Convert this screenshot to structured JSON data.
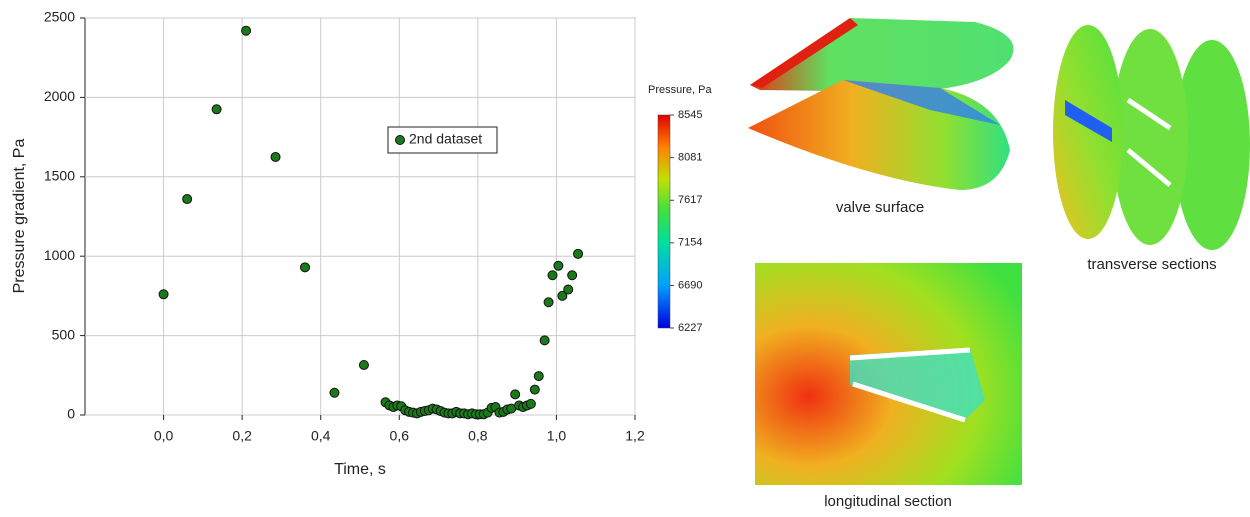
{
  "chart_data": {
    "type": "scatter",
    "xlabel": "Time, s",
    "ylabel": "Pressure gradient, Pa",
    "x": [
      0.0,
      0.06,
      0.135,
      0.21,
      0.285,
      0.36,
      0.435,
      0.51,
      0.565,
      0.575,
      0.585,
      0.595,
      0.605,
      0.615,
      0.625,
      0.635,
      0.645,
      0.655,
      0.665,
      0.675,
      0.685,
      0.695,
      0.705,
      0.715,
      0.725,
      0.735,
      0.745,
      0.755,
      0.765,
      0.775,
      0.785,
      0.795,
      0.805,
      0.815,
      0.825,
      0.835,
      0.845,
      0.855,
      0.865,
      0.875,
      0.885,
      0.895,
      0.905,
      0.915,
      0.925,
      0.935,
      0.945,
      0.955,
      0.97,
      0.98,
      0.99,
      1.005,
      1.015,
      1.03,
      1.04,
      1.055
    ],
    "series": [
      {
        "name": "2nd dataset",
        "color": "#1a7a1a",
        "values": [
          760,
          1360,
          1925,
          2420,
          1625,
          930,
          140,
          315,
          80,
          60,
          50,
          60,
          55,
          30,
          20,
          15,
          10,
          20,
          25,
          30,
          40,
          35,
          25,
          15,
          10,
          10,
          20,
          10,
          10,
          5,
          10,
          5,
          5,
          5,
          15,
          45,
          50,
          15,
          20,
          35,
          40,
          130,
          60,
          50,
          60,
          70,
          160,
          245,
          470,
          710,
          880,
          940,
          750,
          790,
          880,
          1015
        ]
      }
    ],
    "xlim": [
      -0.2,
      1.2
    ],
    "xticks": [
      {
        "value": 0,
        "label": "0,0"
      },
      {
        "value": 0.2,
        "label": "0,2"
      },
      {
        "value": 0.4,
        "label": "0,4"
      },
      {
        "value": 0.6,
        "label": "0,6"
      },
      {
        "value": 0.8,
        "label": "0,8"
      },
      {
        "value": 1.0,
        "label": "1,0"
      },
      {
        "value": 1.2,
        "label": "1,2"
      }
    ],
    "ylim": [
      0,
      2500
    ],
    "yticks": [
      0,
      500,
      1000,
      1500,
      2000,
      2500
    ],
    "grid": true
  },
  "colorbar": {
    "title": "Pressure, Pa",
    "lim": [
      6227,
      8545
    ],
    "ticks": [
      8545,
      8081,
      7617,
      7154,
      6690,
      6227
    ]
  },
  "panels": [
    {
      "caption": "valve surface"
    },
    {
      "caption": "transverse sections"
    },
    {
      "caption": "longitudinal section"
    }
  ]
}
